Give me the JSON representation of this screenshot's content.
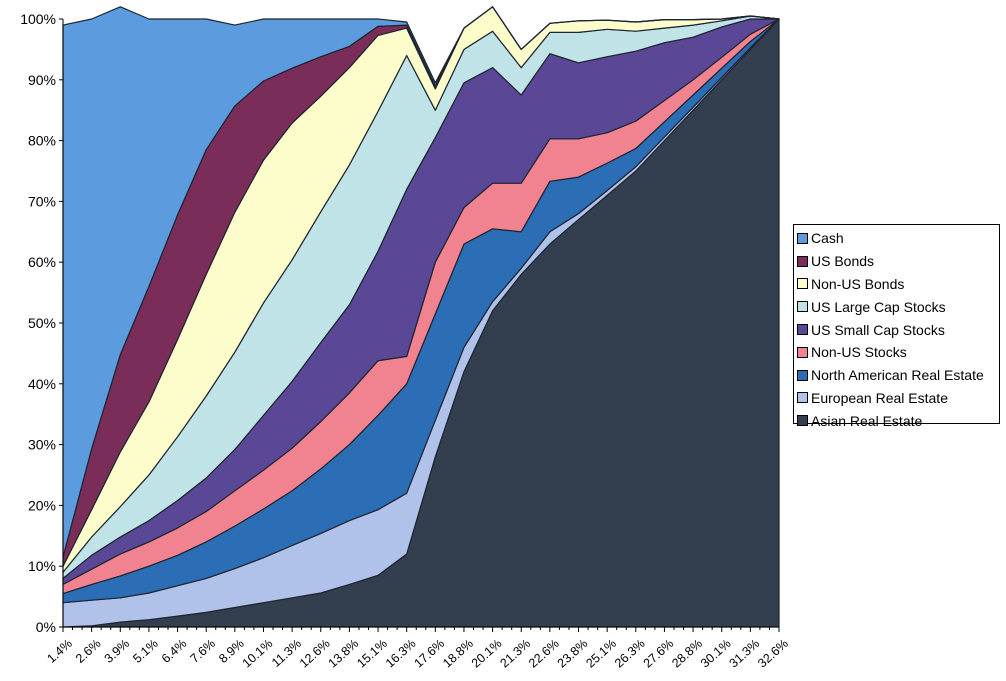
{
  "chart_data": {
    "type": "area",
    "stacked": "percent",
    "title": "",
    "xlabel": "",
    "ylabel": "",
    "ylim": [
      0,
      100
    ],
    "y_ticks": [
      "0%",
      "10%",
      "20%",
      "30%",
      "40%",
      "50%",
      "60%",
      "70%",
      "80%",
      "90%",
      "100%"
    ],
    "x_tick_labels": [
      "1.4%",
      "2.6%",
      "3.9%",
      "5.1%",
      "6.4%",
      "7.6%",
      "8.9%",
      "10.1%",
      "11.3%",
      "12.6%",
      "13.8%",
      "15.1%",
      "16.3%",
      "17.6%",
      "18.8%",
      "20.1%",
      "21.3%",
      "22.6%",
      "23.8%",
      "25.1%",
      "26.3%",
      "27.6%",
      "28.8%",
      "30.1%",
      "31.3%",
      "32.6%"
    ],
    "x": [
      1.4,
      2.6,
      3.9,
      5.1,
      6.4,
      7.6,
      8.9,
      10.1,
      11.3,
      12.6,
      13.8,
      15.1,
      16.3,
      17.6,
      18.8,
      20.1,
      21.3,
      22.6,
      23.8,
      25.1,
      26.3,
      27.6,
      28.8,
      30.1,
      31.3,
      32.6
    ],
    "legend_position": "right",
    "grid": false,
    "series": [
      {
        "name": "Asian Real Estate",
        "color": "#333f4f",
        "values": [
          0,
          0.2,
          0.8,
          1.2,
          1.8,
          2.4,
          3.2,
          4.0,
          4.8,
          5.6,
          7.0,
          8.5,
          12,
          28,
          42,
          52,
          58,
          63,
          67,
          71,
          75,
          80,
          85,
          90,
          95,
          100
        ]
      },
      {
        "name": "European Real Estate",
        "color": "#b0c2ea",
        "values": [
          4.0,
          4.2,
          4.0,
          4.4,
          5.0,
          5.6,
          6.4,
          7.4,
          8.6,
          9.8,
          10.5,
          10.8,
          10.0,
          6.0,
          4.0,
          1.5,
          1.0,
          2.0,
          1.0,
          0.8,
          0.7,
          0.6,
          0.5,
          0.4,
          0.3,
          0
        ]
      },
      {
        "name": "North American Real Estate",
        "color": "#2c6eb5",
        "values": [
          1.5,
          2.6,
          3.6,
          4.4,
          5.0,
          6.0,
          7.0,
          8.0,
          9.0,
          10.6,
          12.5,
          15.5,
          18.0,
          17.5,
          17.0,
          12.0,
          6.0,
          8.3,
          6.0,
          4.5,
          3.0,
          2.5,
          2.0,
          1.5,
          1.0,
          0
        ]
      },
      {
        "name": "Non-US Stocks",
        "color": "#f0838f",
        "values": [
          1.5,
          2.5,
          3.6,
          4.0,
          4.5,
          5.0,
          5.8,
          6.4,
          7.0,
          7.8,
          8.5,
          9.0,
          4.5,
          8.5,
          6.0,
          7.5,
          8.0,
          7.0,
          6.3,
          5.0,
          4.5,
          3.5,
          2.5,
          1.8,
          1.2,
          0
        ]
      },
      {
        "name": "US Small Cap Stocks",
        "color": "#5a4896",
        "values": [
          1.0,
          2.3,
          2.8,
          3.5,
          4.5,
          5.5,
          6.8,
          9.0,
          11.0,
          13.0,
          14.5,
          18.0,
          27.5,
          20.5,
          20.5,
          19.0,
          14.5,
          14.0,
          12.5,
          12.5,
          11.5,
          9.5,
          7.0,
          5.0,
          2.5,
          0
        ]
      },
      {
        "name": "US Large Cap Stocks",
        "color": "#bfe3e6",
        "values": [
          1.0,
          3.0,
          5.0,
          7.5,
          10.5,
          13.5,
          16.0,
          18.5,
          20.0,
          21.5,
          23.0,
          23.0,
          22.0,
          4.5,
          5.5,
          6.0,
          4.5,
          3.5,
          5.0,
          4.5,
          3.3,
          2.4,
          2.0,
          1.0,
          0.5,
          0
        ]
      },
      {
        "name": "Non-US Bonds",
        "color": "#fdfdcc",
        "values": [
          1.0,
          4.5,
          9.0,
          12.0,
          16.0,
          20.0,
          23.0,
          23.5,
          22.5,
          19.0,
          16.0,
          12.5,
          4.5,
          3.5,
          3.5,
          4.0,
          3.0,
          1.5,
          1.9,
          1.5,
          1.5,
          1.4,
          0.9,
          0.3,
          0,
          0
        ]
      },
      {
        "name": "US Bonds",
        "color": "#7b2d5a",
        "values": [
          1.5,
          10.0,
          16.0,
          19.0,
          20.5,
          20.5,
          17.5,
          13.0,
          9.0,
          6.5,
          3.5,
          1.5,
          0.5,
          0.5,
          0,
          0,
          0,
          0,
          0,
          0,
          0,
          0,
          0,
          0,
          0,
          0
        ]
      },
      {
        "name": "Cash",
        "color": "#5b9bde",
        "values": [
          87.5,
          70.7,
          57.2,
          44.0,
          32.2,
          21.5,
          13.3,
          10.2,
          8.1,
          6.2,
          4.5,
          1.2,
          0.5,
          0.5,
          0,
          0,
          0,
          0,
          0,
          0,
          0,
          0,
          0,
          0,
          0,
          0
        ]
      }
    ],
    "legend_order": [
      "Cash",
      "US Bonds",
      "Non-US Bonds",
      "US Large Cap Stocks",
      "US Small Cap Stocks",
      "Non-US Stocks",
      "North American Real Estate",
      "European Real Estate",
      "Asian Real Estate"
    ]
  }
}
